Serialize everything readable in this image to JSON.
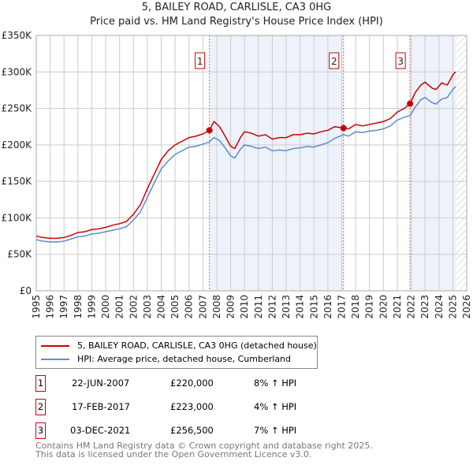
{
  "title": "5, BAILEY ROAD, CARLISLE, CA3 0HG",
  "subtitle": "Price paid vs. HM Land Registry's House Price Index (HPI)",
  "chart_data": {
    "type": "line",
    "xlim": [
      1995,
      2026
    ],
    "ylim": [
      0,
      350000
    ],
    "x_ticks": [
      "1995",
      "1996",
      "1997",
      "1998",
      "1999",
      "2000",
      "2001",
      "2002",
      "2003",
      "2004",
      "2005",
      "2006",
      "2007",
      "2008",
      "2009",
      "2010",
      "2011",
      "2012",
      "2013",
      "2014",
      "2015",
      "2016",
      "2017",
      "2018",
      "2019",
      "2020",
      "2021",
      "2022",
      "2023",
      "2024",
      "2025",
      "2026"
    ],
    "y_ticks": [
      {
        "v": 0,
        "l": "£0"
      },
      {
        "v": 50000,
        "l": "£50K"
      },
      {
        "v": 100000,
        "l": "£100K"
      },
      {
        "v": 150000,
        "l": "£150K"
      },
      {
        "v": 200000,
        "l": "£200K"
      },
      {
        "v": 250000,
        "l": "£250K"
      },
      {
        "v": 300000,
        "l": "£300K"
      },
      {
        "v": 350000,
        "l": "£350K"
      }
    ],
    "series": [
      {
        "name": "5, BAILEY ROAD, CARLISLE, CA3 0HG (detached house)",
        "color": "#cc0000",
        "x": [
          1995,
          1995.5,
          1996,
          1996.5,
          1997,
          1997.5,
          1998,
          1998.5,
          1999,
          1999.5,
          2000,
          2000.5,
          2001,
          2001.5,
          2002,
          2002.5,
          2003,
          2003.5,
          2004,
          2004.5,
          2005,
          2005.5,
          2006,
          2006.5,
          2007,
          2007.47,
          2007.8,
          2008.2,
          2008.6,
          2009,
          2009.3,
          2009.7,
          2010,
          2010.5,
          2011,
          2011.5,
          2012,
          2012.5,
          2013,
          2013.5,
          2014,
          2014.5,
          2015,
          2015.5,
          2016,
          2016.5,
          2017.13,
          2017.5,
          2018,
          2018.5,
          2019,
          2019.5,
          2020,
          2020.5,
          2021,
          2021.5,
          2021.92,
          2022.3,
          2022.7,
          2023,
          2023.5,
          2023.8,
          2024.2,
          2024.6,
          2025,
          2025.2
        ],
        "y": [
          75000,
          73000,
          72000,
          72000,
          73000,
          76000,
          80000,
          81000,
          84000,
          85000,
          87000,
          90000,
          92000,
          95000,
          105000,
          118000,
          140000,
          160000,
          180000,
          192000,
          200000,
          205000,
          210000,
          212000,
          215000,
          220000,
          232000,
          225000,
          212000,
          198000,
          195000,
          210000,
          218000,
          216000,
          212000,
          214000,
          208000,
          210000,
          210000,
          214000,
          214000,
          216000,
          215000,
          218000,
          220000,
          225000,
          223000,
          222000,
          228000,
          226000,
          228000,
          230000,
          232000,
          236000,
          245000,
          250000,
          256500,
          272000,
          282000,
          286000,
          278000,
          276000,
          285000,
          282000,
          296000,
          300000
        ]
      },
      {
        "name": "HPI: Average price, detached house, Cumberland",
        "color": "#5b8bd0",
        "x": [
          1995,
          1995.5,
          1996,
          1996.5,
          1997,
          1997.5,
          1998,
          1998.5,
          1999,
          1999.5,
          2000,
          2000.5,
          2001,
          2001.5,
          2002,
          2002.5,
          2003,
          2003.5,
          2004,
          2004.5,
          2005,
          2005.5,
          2006,
          2006.5,
          2007,
          2007.47,
          2007.8,
          2008.2,
          2008.6,
          2009,
          2009.3,
          2009.7,
          2010,
          2010.5,
          2011,
          2011.5,
          2012,
          2012.5,
          2013,
          2013.5,
          2014,
          2014.5,
          2015,
          2015.5,
          2016,
          2016.5,
          2017.13,
          2017.5,
          2018,
          2018.5,
          2019,
          2019.5,
          2020,
          2020.5,
          2021,
          2021.5,
          2021.92,
          2022.3,
          2022.7,
          2023,
          2023.5,
          2023.8,
          2024.2,
          2024.6,
          2025,
          2025.2
        ],
        "y": [
          70000,
          68000,
          67000,
          67000,
          68000,
          71000,
          74000,
          75000,
          78000,
          79000,
          81000,
          83000,
          85000,
          88000,
          97000,
          108000,
          128000,
          148000,
          167000,
          178000,
          187000,
          192000,
          197000,
          198000,
          201000,
          204000,
          210000,
          206000,
          196000,
          185000,
          182000,
          194000,
          200000,
          198000,
          195000,
          197000,
          192000,
          193000,
          192000,
          195000,
          196000,
          198000,
          197000,
          200000,
          203000,
          209000,
          214000,
          212000,
          218000,
          217000,
          219000,
          220000,
          222000,
          226000,
          234000,
          238000,
          240000,
          252000,
          262000,
          265000,
          258000,
          256000,
          263000,
          265000,
          276000,
          280000
        ]
      }
    ],
    "sales": [
      {
        "label": "1",
        "x": 2007.47,
        "y": 220000,
        "date": "22-JUN-2007",
        "price": "£220,000",
        "hpi": "8% ↑ HPI"
      },
      {
        "label": "2",
        "x": 2017.13,
        "y": 223000,
        "date": "17-FEB-2017",
        "price": "£223,000",
        "hpi": "4% ↑ HPI"
      },
      {
        "label": "3",
        "x": 2021.92,
        "y": 256500,
        "date": "03-DEC-2021",
        "price": "£256,500",
        "hpi": "7% ↑ HPI"
      }
    ],
    "shaded_ranges": [
      [
        2007.47,
        2017.13
      ],
      [
        2021.92,
        2025.2
      ]
    ],
    "hatch_from": 2025.2
  },
  "legend": {
    "red": "5, BAILEY ROAD, CARLISLE, CA3 0HG (detached house)",
    "blue": "HPI: Average price, detached house, Cumberland"
  },
  "footer": {
    "line1": "Contains HM Land Registry data © Crown copyright and database right 2025.",
    "line2": "This data is licensed under the Open Government Licence v3.0."
  }
}
